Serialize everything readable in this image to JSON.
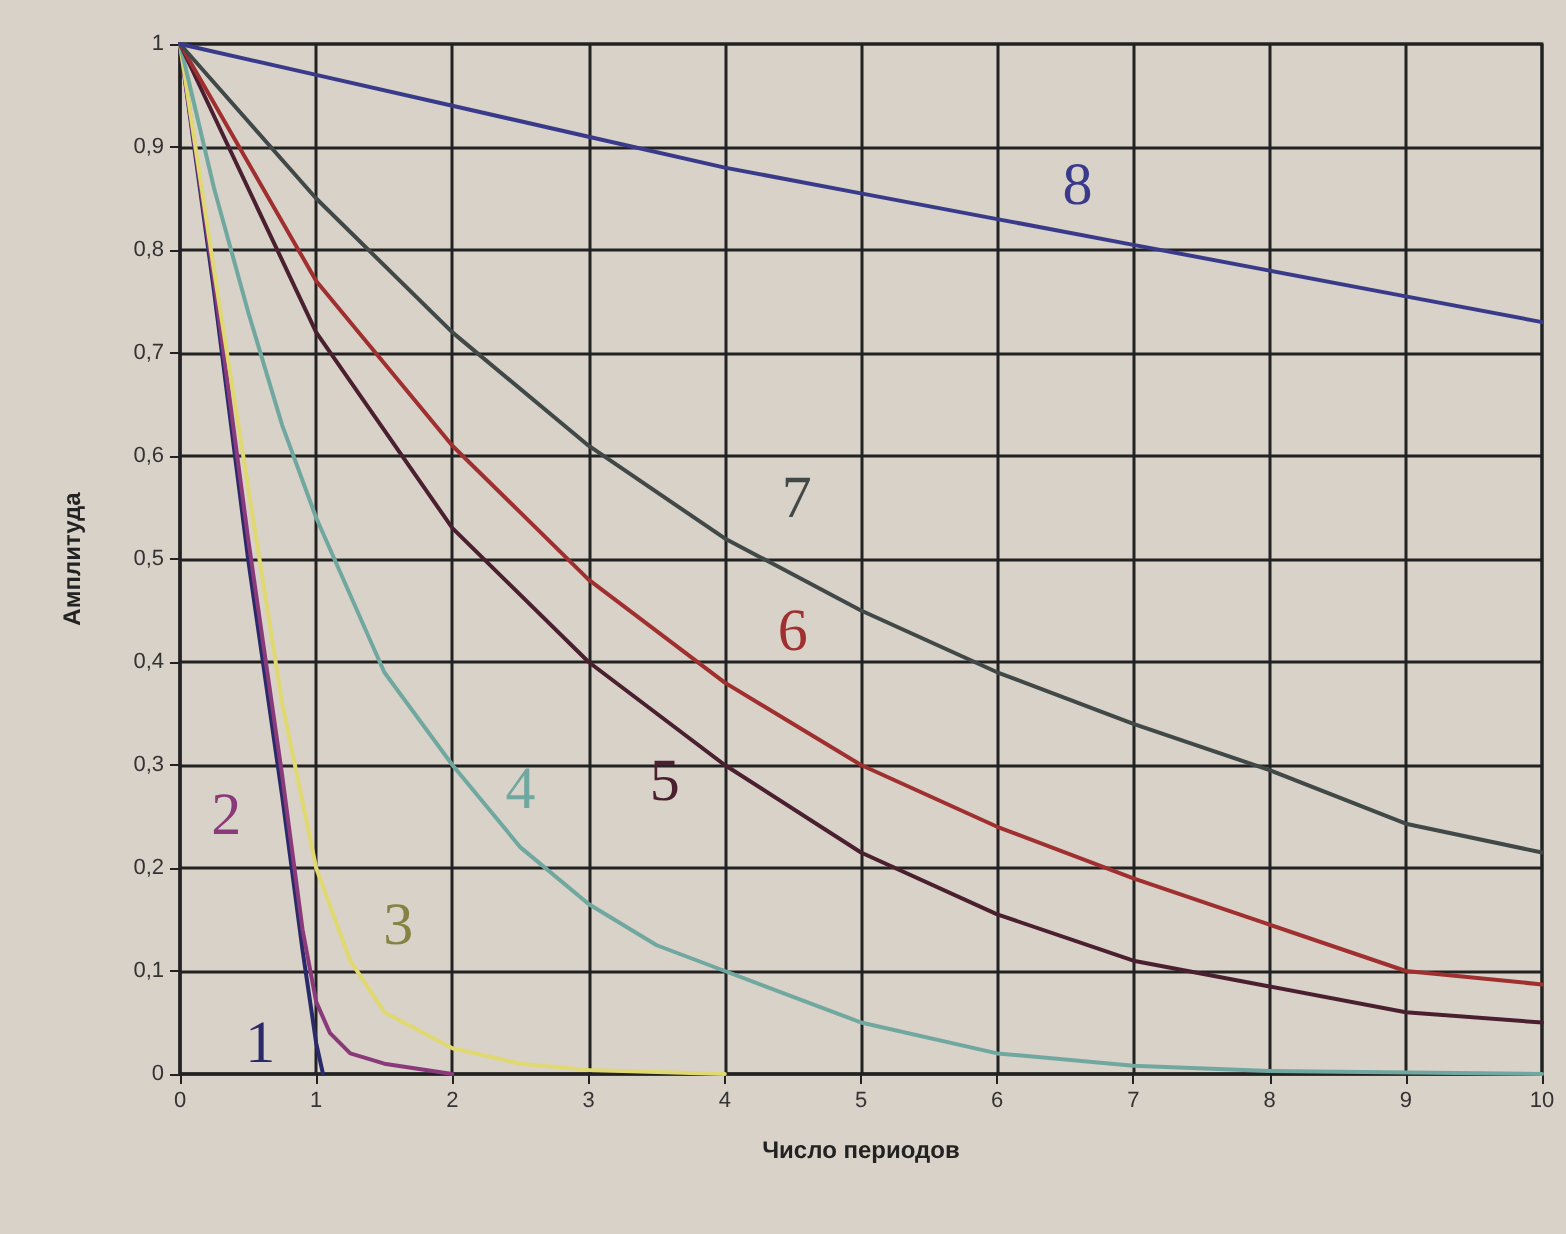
{
  "chart_data": {
    "type": "line",
    "xlabel": "Число периодов",
    "ylabel": "Амплитуда",
    "xlim": [
      0,
      10
    ],
    "xticks": [
      0,
      1,
      2,
      3,
      4,
      5,
      6,
      7,
      8,
      9,
      10
    ],
    "ylim": [
      0,
      1
    ],
    "yticks": [
      0,
      {
        "value": 0.1,
        "label": "0,1"
      },
      {
        "value": 0.2,
        "label": "0,2"
      },
      {
        "value": 0.3,
        "label": "0,3"
      },
      {
        "value": 0.4,
        "label": "0,4"
      },
      {
        "value": 0.5,
        "label": "0,5"
      },
      {
        "value": 0.6,
        "label": "0,6"
      },
      {
        "value": 0.7,
        "label": "0,7"
      },
      {
        "value": 0.8,
        "label": "0,8"
      },
      {
        "value": 0.9,
        "label": "0,9"
      },
      1
    ],
    "grid": true,
    "marker": "none",
    "line_style": "solid",
    "series": [
      {
        "name": "1",
        "color": "#2a2a6a",
        "x": [
          0,
          0.25,
          0.5,
          0.75,
          0.9,
          1,
          1.05
        ],
        "values": [
          1,
          0.76,
          0.5,
          0.27,
          0.12,
          0.03,
          0
        ]
      },
      {
        "name": "2",
        "color": "#8a3a7a",
        "x": [
          0,
          0.25,
          0.5,
          0.75,
          0.9,
          1,
          1.1,
          1.25,
          1.5,
          2
        ],
        "values": [
          1,
          0.77,
          0.52,
          0.29,
          0.14,
          0.07,
          0.04,
          0.02,
          0.01,
          0
        ]
      },
      {
        "name": "3",
        "color": "#e0d870",
        "x": [
          0,
          0.25,
          0.5,
          0.75,
          1,
          1.25,
          1.5,
          2,
          2.5,
          3,
          4
        ],
        "values": [
          1,
          0.78,
          0.57,
          0.36,
          0.2,
          0.11,
          0.06,
          0.025,
          0.01,
          0.004,
          0
        ]
      },
      {
        "name": "4",
        "color": "#70a8a0",
        "x": [
          0,
          0.25,
          0.5,
          0.75,
          1,
          1.5,
          2,
          2.5,
          3,
          3.5,
          4,
          5,
          6,
          7,
          8,
          10
        ],
        "values": [
          1,
          0.86,
          0.74,
          0.63,
          0.54,
          0.39,
          0.3,
          0.22,
          0.165,
          0.125,
          0.1,
          0.05,
          0.02,
          0.008,
          0.003,
          0
        ]
      },
      {
        "name": "5",
        "color": "#4a2030",
        "x": [
          0,
          1,
          2,
          3,
          4,
          5,
          6,
          7,
          8,
          9,
          10
        ],
        "values": [
          1,
          0.72,
          0.53,
          0.4,
          0.3,
          0.215,
          0.155,
          0.11,
          0.085,
          0.06,
          0.05
        ]
      },
      {
        "name": "6",
        "color": "#a03030",
        "x": [
          0,
          1,
          2,
          3,
          4,
          5,
          6,
          7,
          8,
          9,
          10
        ],
        "values": [
          1,
          0.77,
          0.61,
          0.48,
          0.38,
          0.3,
          0.24,
          0.19,
          0.145,
          0.1,
          0.087
        ]
      },
      {
        "name": "7",
        "color": "#404848",
        "x": [
          0,
          1,
          2,
          3,
          4,
          5,
          6,
          7,
          8,
          9,
          10
        ],
        "values": [
          1,
          0.85,
          0.72,
          0.61,
          0.52,
          0.45,
          0.39,
          0.34,
          0.295,
          0.243,
          0.215
        ]
      },
      {
        "name": "8",
        "color": "#3a3a8a",
        "x": [
          0,
          1,
          2,
          3,
          4,
          5,
          6,
          7,
          8,
          9,
          10
        ],
        "values": [
          1,
          0.97,
          0.94,
          0.91,
          0.88,
          0.855,
          0.83,
          0.805,
          0.78,
          0.755,
          0.73
        ]
      }
    ]
  }
}
